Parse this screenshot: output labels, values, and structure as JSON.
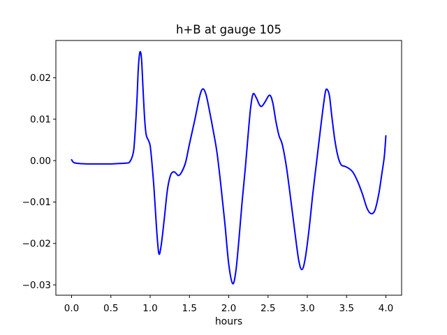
{
  "figure": {
    "background": "#ffffff",
    "frame_color": "#000000"
  },
  "chart_data": {
    "type": "line",
    "title": "h+B at gauge 105",
    "xlabel": "hours",
    "ylabel": "",
    "grid": false,
    "legend": null,
    "xlim": [
      -0.2,
      4.2
    ],
    "ylim": [
      -0.0325,
      0.029
    ],
    "x_ticks": {
      "values": [
        0.0,
        0.5,
        1.0,
        1.5,
        2.0,
        2.5,
        3.0,
        3.5,
        4.0
      ],
      "labels": [
        "0.0",
        "0.5",
        "1.0",
        "1.5",
        "2.0",
        "2.5",
        "3.0",
        "3.5",
        "4.0"
      ]
    },
    "y_ticks": {
      "values": [
        0.02,
        0.01,
        0.0,
        -0.01,
        -0.02,
        -0.03
      ],
      "labels": [
        "0.02",
        "0.01",
        "0.00",
        "−0.01",
        "−0.02",
        "−0.03"
      ]
    },
    "series": [
      {
        "name": "h+B",
        "color": "#0000ff",
        "line_width": 2,
        "x": [
          0.0,
          0.03,
          0.1,
          0.2,
          0.3,
          0.4,
          0.5,
          0.6,
          0.7,
          0.74,
          0.78,
          0.8,
          0.83,
          0.85,
          0.87,
          0.89,
          0.91,
          0.93,
          0.95,
          0.98,
          1.0,
          1.02,
          1.05,
          1.08,
          1.11,
          1.14,
          1.18,
          1.22,
          1.26,
          1.3,
          1.33,
          1.36,
          1.4,
          1.45,
          1.5,
          1.57,
          1.63,
          1.67,
          1.71,
          1.75,
          1.8,
          1.85,
          1.9,
          1.95,
          2.0,
          2.05,
          2.09,
          2.13,
          2.17,
          2.21,
          2.25,
          2.28,
          2.31,
          2.35,
          2.39,
          2.42,
          2.46,
          2.52,
          2.56,
          2.6,
          2.64,
          2.68,
          2.73,
          2.78,
          2.84,
          2.89,
          2.93,
          2.97,
          3.02,
          3.07,
          3.12,
          3.17,
          3.21,
          3.24,
          3.28,
          3.31,
          3.35,
          3.39,
          3.43,
          3.48,
          3.53,
          3.58,
          3.64,
          3.7,
          3.76,
          3.81,
          3.86,
          3.91,
          3.95,
          3.98,
          4.0
        ],
        "y": [
          0.0002,
          -0.0005,
          -0.0007,
          -0.0008,
          -0.0008,
          -0.0008,
          -0.0008,
          -0.0007,
          -0.0006,
          -0.0003,
          0.0015,
          0.0045,
          0.014,
          0.0225,
          0.0262,
          0.0245,
          0.017,
          0.01,
          0.0062,
          0.0048,
          0.0036,
          0.0,
          -0.007,
          -0.016,
          -0.0224,
          -0.0205,
          -0.014,
          -0.007,
          -0.0035,
          -0.0027,
          -0.0031,
          -0.0036,
          -0.0028,
          -0.0005,
          0.004,
          0.01,
          0.0155,
          0.0173,
          0.016,
          0.0125,
          0.0075,
          0.002,
          -0.006,
          -0.015,
          -0.025,
          -0.0297,
          -0.0268,
          -0.019,
          -0.01,
          -0.002,
          0.007,
          0.013,
          0.0161,
          0.0152,
          0.0135,
          0.0131,
          0.0141,
          0.0158,
          0.014,
          0.0095,
          0.006,
          0.004,
          -0.001,
          -0.008,
          -0.017,
          -0.024,
          -0.0263,
          -0.024,
          -0.017,
          -0.008,
          0.0,
          0.008,
          0.014,
          0.0172,
          0.0158,
          0.011,
          0.005,
          0.001,
          -0.001,
          -0.0014,
          -0.0019,
          -0.0028,
          -0.005,
          -0.008,
          -0.0115,
          -0.0128,
          -0.012,
          -0.008,
          -0.003,
          0.001,
          0.006
        ]
      }
    ]
  }
}
